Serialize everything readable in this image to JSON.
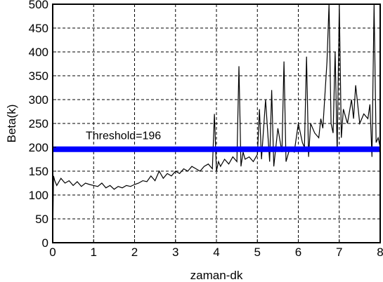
{
  "chart_data": {
    "type": "line",
    "title": "",
    "xlabel": "zaman-dk",
    "ylabel": "Beta(k)",
    "xlim": [
      0,
      8
    ],
    "ylim": [
      0,
      500
    ],
    "x_ticks": [
      0,
      1,
      2,
      3,
      4,
      5,
      6,
      7,
      8
    ],
    "y_ticks": [
      0,
      50,
      100,
      150,
      200,
      250,
      300,
      350,
      400,
      450,
      500
    ],
    "grid": true,
    "line_color": "#000000",
    "threshold": {
      "value": 196,
      "label": "Threshold=196",
      "color": "#0000ff"
    },
    "series": [
      {
        "values_x": [
          0.0,
          0.02,
          0.05,
          0.1,
          0.2,
          0.3,
          0.4,
          0.5,
          0.6,
          0.7,
          0.8,
          0.9,
          1.0,
          1.1,
          1.2,
          1.3,
          1.4,
          1.5,
          1.6,
          1.7,
          1.8,
          1.9,
          2.0,
          2.1,
          2.2,
          2.3,
          2.4,
          2.5,
          2.6,
          2.7,
          2.8,
          2.9,
          3.0,
          3.1,
          3.2,
          3.3,
          3.4,
          3.5,
          3.6,
          3.7,
          3.8,
          3.9,
          3.95,
          4.0,
          4.05,
          4.1,
          4.2,
          4.3,
          4.4,
          4.5,
          4.55,
          4.6,
          4.65,
          4.7,
          4.8,
          4.9,
          5.0,
          5.05,
          5.1,
          5.2,
          5.3,
          5.35,
          5.4,
          5.5,
          5.6,
          5.65,
          5.7,
          5.8,
          5.9,
          6.0,
          6.1,
          6.15,
          6.2,
          6.25,
          6.3,
          6.4,
          6.5,
          6.55,
          6.6,
          6.7,
          6.75,
          6.8,
          6.85,
          6.9,
          6.95,
          7.0,
          7.05,
          7.1,
          7.2,
          7.3,
          7.35,
          7.4,
          7.5,
          7.6,
          7.7,
          7.75,
          7.8,
          7.85,
          7.9,
          7.95,
          8.0
        ],
        "values_y": [
          10,
          140,
          130,
          120,
          135,
          125,
          130,
          120,
          128,
          118,
          125,
          122,
          120,
          118,
          125,
          115,
          120,
          112,
          118,
          115,
          120,
          118,
          122,
          125,
          130,
          128,
          140,
          130,
          150,
          135,
          145,
          140,
          150,
          145,
          155,
          150,
          160,
          155,
          150,
          160,
          165,
          155,
          270,
          150,
          170,
          160,
          175,
          165,
          180,
          170,
          370,
          160,
          190,
          175,
          180,
          170,
          185,
          280,
          175,
          300,
          170,
          320,
          160,
          240,
          190,
          380,
          170,
          200,
          190,
          250,
          210,
          200,
          390,
          180,
          250,
          230,
          220,
          260,
          240,
          380,
          500,
          250,
          230,
          400,
          190,
          500,
          220,
          280,
          250,
          300,
          260,
          330,
          250,
          270,
          260,
          290,
          180,
          500,
          210,
          220,
          200
        ]
      }
    ]
  }
}
